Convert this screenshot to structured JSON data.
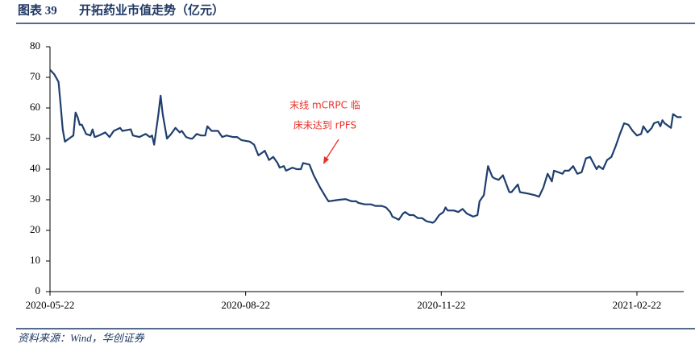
{
  "chart_data": {
    "type": "line",
    "figure_label": "图表 39",
    "title": "开拓药业市值走势（亿元）",
    "annotation": [
      "末线 mCRPC 临",
      "床未达到 rPFS"
    ],
    "source": "资料来源：Wind，华创证券",
    "xlim": [
      "2020-05-22",
      "2021-03-16"
    ],
    "xticks": [
      "2020-05-22",
      "2020-08-22",
      "2020-11-22",
      "2021-02-22"
    ],
    "ylim": [
      0,
      80
    ],
    "yticks": [
      0,
      10,
      20,
      30,
      40,
      50,
      60,
      70,
      80
    ],
    "x": [
      "2020-05-22",
      "2020-05-24",
      "2020-05-26",
      "2020-05-27",
      "2020-05-28",
      "2020-05-29",
      "2020-05-31",
      "2020-06-02",
      "2020-06-03",
      "2020-06-04",
      "2020-06-05",
      "2020-06-06",
      "2020-06-08",
      "2020-06-10",
      "2020-06-11",
      "2020-06-12",
      "2020-06-14",
      "2020-06-17",
      "2020-06-19",
      "2020-06-21",
      "2020-06-24",
      "2020-06-25",
      "2020-06-29",
      "2020-06-30",
      "2020-07-03",
      "2020-07-06",
      "2020-07-08",
      "2020-07-09",
      "2020-07-10",
      "2020-07-12",
      "2020-07-13",
      "2020-07-14",
      "2020-07-16",
      "2020-07-18",
      "2020-07-20",
      "2020-07-22",
      "2020-07-23",
      "2020-07-25",
      "2020-07-27",
      "2020-07-28",
      "2020-07-30",
      "2020-08-01",
      "2020-08-03",
      "2020-08-04",
      "2020-08-06",
      "2020-08-09",
      "2020-08-11",
      "2020-08-13",
      "2020-08-16",
      "2020-08-18",
      "2020-08-20",
      "2020-08-24",
      "2020-08-26",
      "2020-08-28",
      "2020-08-30",
      "2020-08-31",
      "2020-09-02",
      "2020-09-04",
      "2020-09-06",
      "2020-09-07",
      "2020-09-09",
      "2020-09-10",
      "2020-09-13",
      "2020-09-15",
      "2020-09-17",
      "2020-09-18",
      "2020-09-21",
      "2020-09-23",
      "2020-09-26",
      "2020-09-29",
      "2020-09-30",
      "2020-10-05",
      "2020-10-08",
      "2020-10-11",
      "2020-10-13",
      "2020-10-14",
      "2020-10-17",
      "2020-10-20",
      "2020-10-22",
      "2020-10-25",
      "2020-10-27",
      "2020-10-29",
      "2020-10-30",
      "2020-11-02",
      "2020-11-04",
      "2020-11-05",
      "2020-11-07",
      "2020-11-09",
      "2020-11-11",
      "2020-11-13",
      "2020-11-15",
      "2020-11-18",
      "2020-11-19",
      "2020-11-21",
      "2020-11-23",
      "2020-11-24",
      "2020-11-25",
      "2020-11-28",
      "2020-11-30",
      "2020-12-02",
      "2020-12-04",
      "2020-12-07",
      "2020-12-09",
      "2020-12-10",
      "2020-12-12",
      "2020-12-14",
      "2020-12-16",
      "2020-12-17",
      "2020-12-19",
      "2020-12-21",
      "2020-12-24",
      "2020-12-25",
      "2020-12-28",
      "2020-12-29",
      "2021-01-02",
      "2021-01-05",
      "2021-01-07",
      "2021-01-09",
      "2021-01-11",
      "2021-01-13",
      "2021-01-14",
      "2021-01-16",
      "2021-01-18",
      "2021-01-19",
      "2021-01-21",
      "2021-01-23",
      "2021-01-25",
      "2021-01-27",
      "2021-01-29",
      "2021-01-31",
      "2021-02-03",
      "2021-02-04",
      "2021-02-06",
      "2021-02-08",
      "2021-02-10",
      "2021-02-12",
      "2021-02-14",
      "2021-02-16",
      "2021-02-18",
      "2021-02-20",
      "2021-02-22",
      "2021-02-24",
      "2021-02-25",
      "2021-02-27",
      "2021-03-01",
      "2021-03-02",
      "2021-03-04",
      "2021-03-05",
      "2021-03-06",
      "2021-03-07",
      "2021-03-09",
      "2021-03-10",
      "2021-03-11",
      "2021-03-13",
      "2021-03-15"
    ],
    "series": [
      {
        "color": "#1f3f6e",
        "values": [
          72.5,
          71,
          68.5,
          61,
          53,
          49,
          50,
          51,
          58.5,
          57,
          54.5,
          54.5,
          51.5,
          51,
          53,
          50.5,
          51,
          52,
          50.5,
          52.5,
          53.5,
          52.5,
          53,
          51,
          50.5,
          51.5,
          50.5,
          51,
          48,
          58,
          64,
          58,
          50,
          51.5,
          53.5,
          52,
          52.5,
          50.5,
          50,
          50,
          51.5,
          51,
          51,
          54,
          52.5,
          52.5,
          50.5,
          51,
          50.5,
          50.5,
          49.5,
          49,
          48,
          44.5,
          45.5,
          46,
          43,
          44,
          42,
          40.5,
          41,
          39.5,
          40.5,
          40,
          40,
          42,
          41.5,
          38,
          34,
          30.5,
          29.5,
          30,
          30.2,
          29.5,
          29.5,
          29,
          28.5,
          28.5,
          28,
          28,
          27.5,
          26,
          24.5,
          23.5,
          25.5,
          26,
          25,
          25,
          24,
          24,
          23,
          22.5,
          23,
          25,
          26,
          27.5,
          26.5,
          26.5,
          26,
          27,
          25.5,
          24.5,
          25,
          29.5,
          31.5,
          41,
          37.5,
          37,
          36.5,
          38,
          32.5,
          32.5,
          35,
          32.5,
          32,
          31.5,
          31,
          34,
          38.5,
          36,
          39.5,
          39,
          38.5,
          39.5,
          39.5,
          41,
          38.5,
          39,
          43.5,
          44,
          40,
          41,
          40,
          43,
          44,
          47.5,
          51.5,
          55,
          54.5,
          52.5,
          51,
          51.5,
          54,
          52,
          53.5,
          55,
          55.5,
          54,
          56,
          55,
          54,
          53.5,
          58,
          57,
          57
        ]
      }
    ]
  }
}
